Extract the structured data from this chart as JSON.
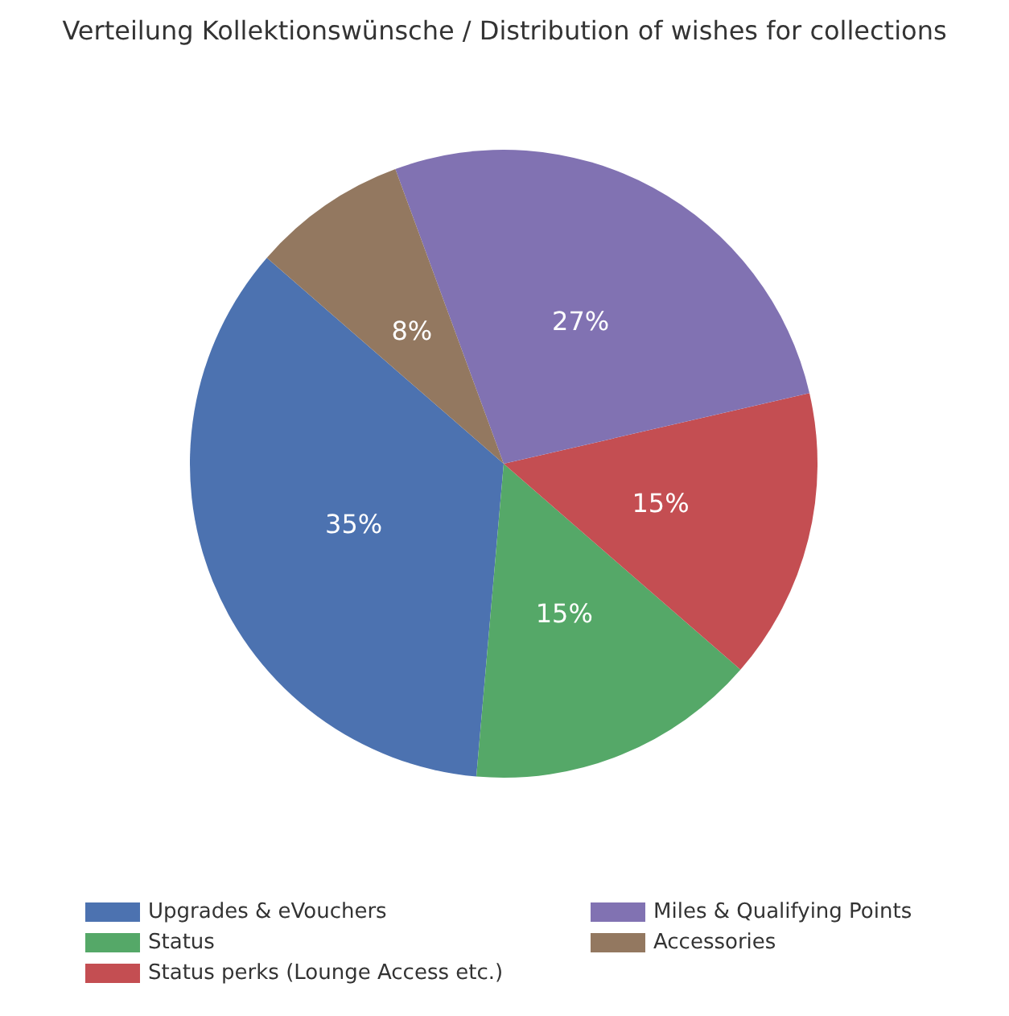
{
  "chart_data": {
    "type": "pie",
    "title": "Verteilung Kollektionswünsche / Distribution of wishes for collections",
    "categories": [
      "Upgrades & eVouchers",
      "Status",
      "Status perks (Lounge Access etc.)",
      "Miles & Qualifying Points",
      "Accessories"
    ],
    "values": [
      35,
      15,
      15,
      27,
      8
    ],
    "colors": [
      "#4c72b0",
      "#55a868",
      "#c44e52",
      "#8172b2",
      "#937860"
    ],
    "value_labels": [
      "35%",
      "15%",
      "15%",
      "27%",
      "8%"
    ],
    "legend": "bottom"
  }
}
